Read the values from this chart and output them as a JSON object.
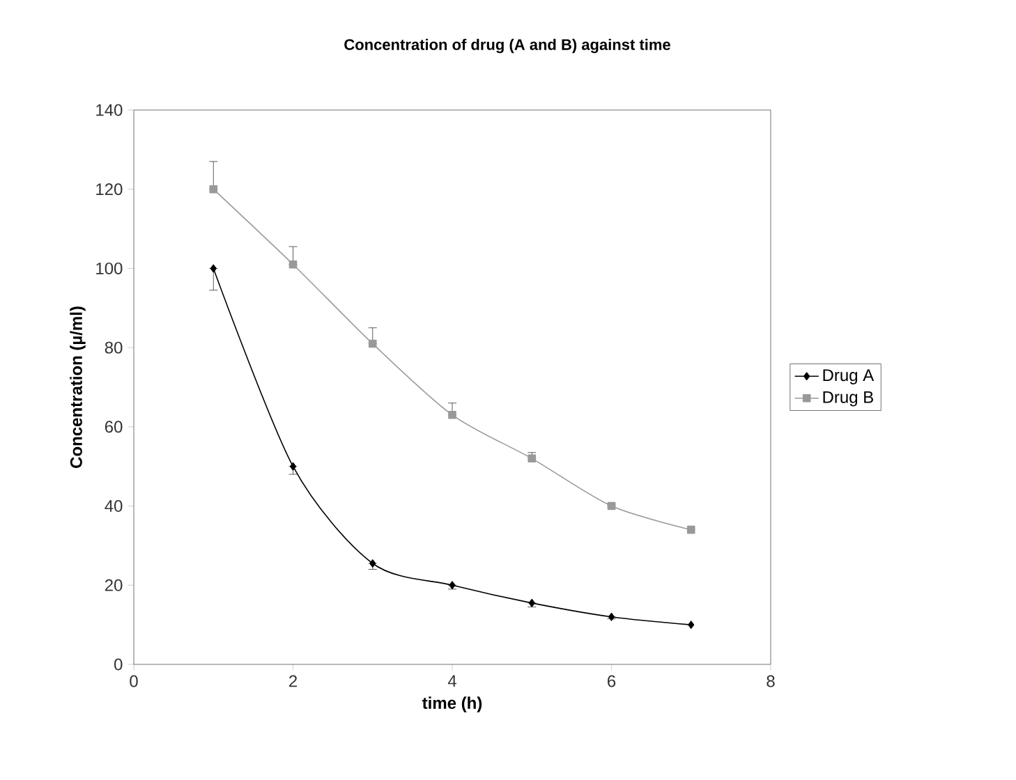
{
  "chart_data": {
    "type": "line",
    "title": "Concentration of drug (A and B) against time",
    "xlabel": "time (h)",
    "ylabel": "Concentration (µ/ml)",
    "x": [
      1,
      2,
      3,
      4,
      5,
      6,
      7
    ],
    "series": [
      {
        "name": "Drug A",
        "color": "#000000",
        "marker": "diamond",
        "values": [
          100,
          50,
          25.5,
          20,
          15.5,
          12,
          10
        ],
        "errors": [
          [
            94.5,
            100
          ],
          [
            48,
            50
          ],
          [
            24,
            25.5
          ],
          [
            19,
            20
          ],
          [
            14.5,
            15.5
          ],
          [
            11.5,
            12
          ],
          null
        ]
      },
      {
        "name": "Drug B",
        "color": "#999999",
        "marker": "square",
        "values": [
          120,
          101,
          81,
          63,
          52,
          40,
          34
        ],
        "errors": [
          [
            120,
            127
          ],
          [
            101,
            105.5
          ],
          [
            81,
            85
          ],
          [
            63,
            66
          ],
          [
            52,
            53.5
          ],
          [
            40,
            40.5
          ],
          null
        ]
      }
    ],
    "xlim": [
      0,
      8
    ],
    "xticks": [
      0,
      2,
      4,
      6,
      8
    ],
    "ylim": [
      0,
      140
    ],
    "yticks": [
      0,
      20,
      40,
      60,
      80,
      100,
      120,
      140
    ],
    "grid": false,
    "legend": "right",
    "line_style": "solid"
  }
}
